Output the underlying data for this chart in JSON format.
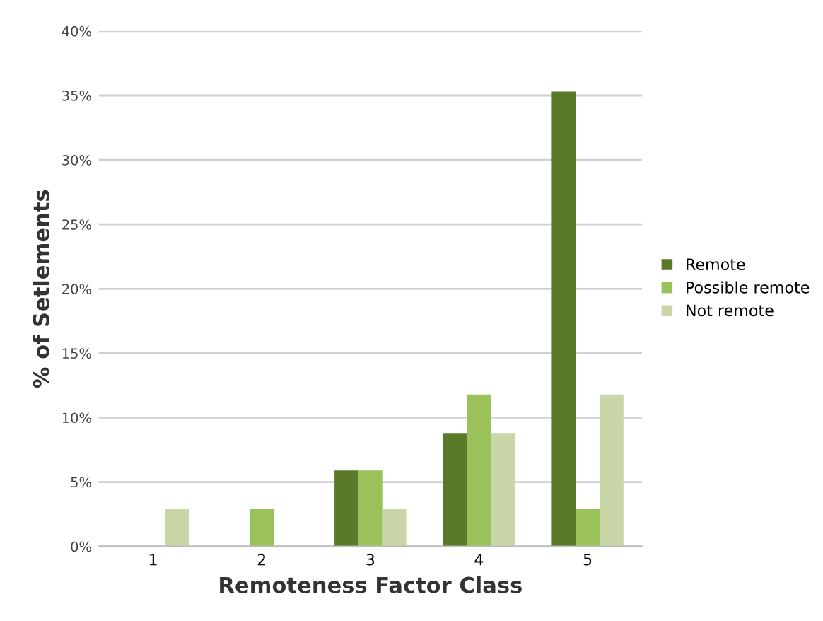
{
  "chart_data": {
    "type": "bar",
    "xlabel": "Remoteness Factor Class",
    "ylabel": "% of Setlements",
    "categories": [
      "1",
      "2",
      "3",
      "4",
      "5"
    ],
    "series": [
      {
        "name": "Remote",
        "color": "#5a7a2a",
        "values": [
          0,
          0,
          5.9,
          8.8,
          35.3
        ]
      },
      {
        "name": "Possible remote",
        "color": "#9bc25a",
        "values": [
          0,
          2.9,
          5.9,
          11.8,
          2.9
        ]
      },
      {
        "name": "Not remote",
        "color": "#c8d6a8",
        "values": [
          2.9,
          0,
          2.9,
          8.8,
          11.8
        ]
      }
    ],
    "ylim": [
      0,
      40
    ],
    "yticks": [
      {
        "value": 0,
        "label": "0%"
      },
      {
        "value": 5,
        "label": "5%"
      },
      {
        "value": 10,
        "label": "10%"
      },
      {
        "value": 15,
        "label": "15%"
      },
      {
        "value": 20,
        "label": "20%"
      },
      {
        "value": 25,
        "label": "25%"
      },
      {
        "value": 30,
        "label": "30%"
      },
      {
        "value": 35,
        "label": "35%"
      },
      {
        "value": 40,
        "label": "40%"
      }
    ],
    "grid": "y",
    "legend": "right"
  }
}
